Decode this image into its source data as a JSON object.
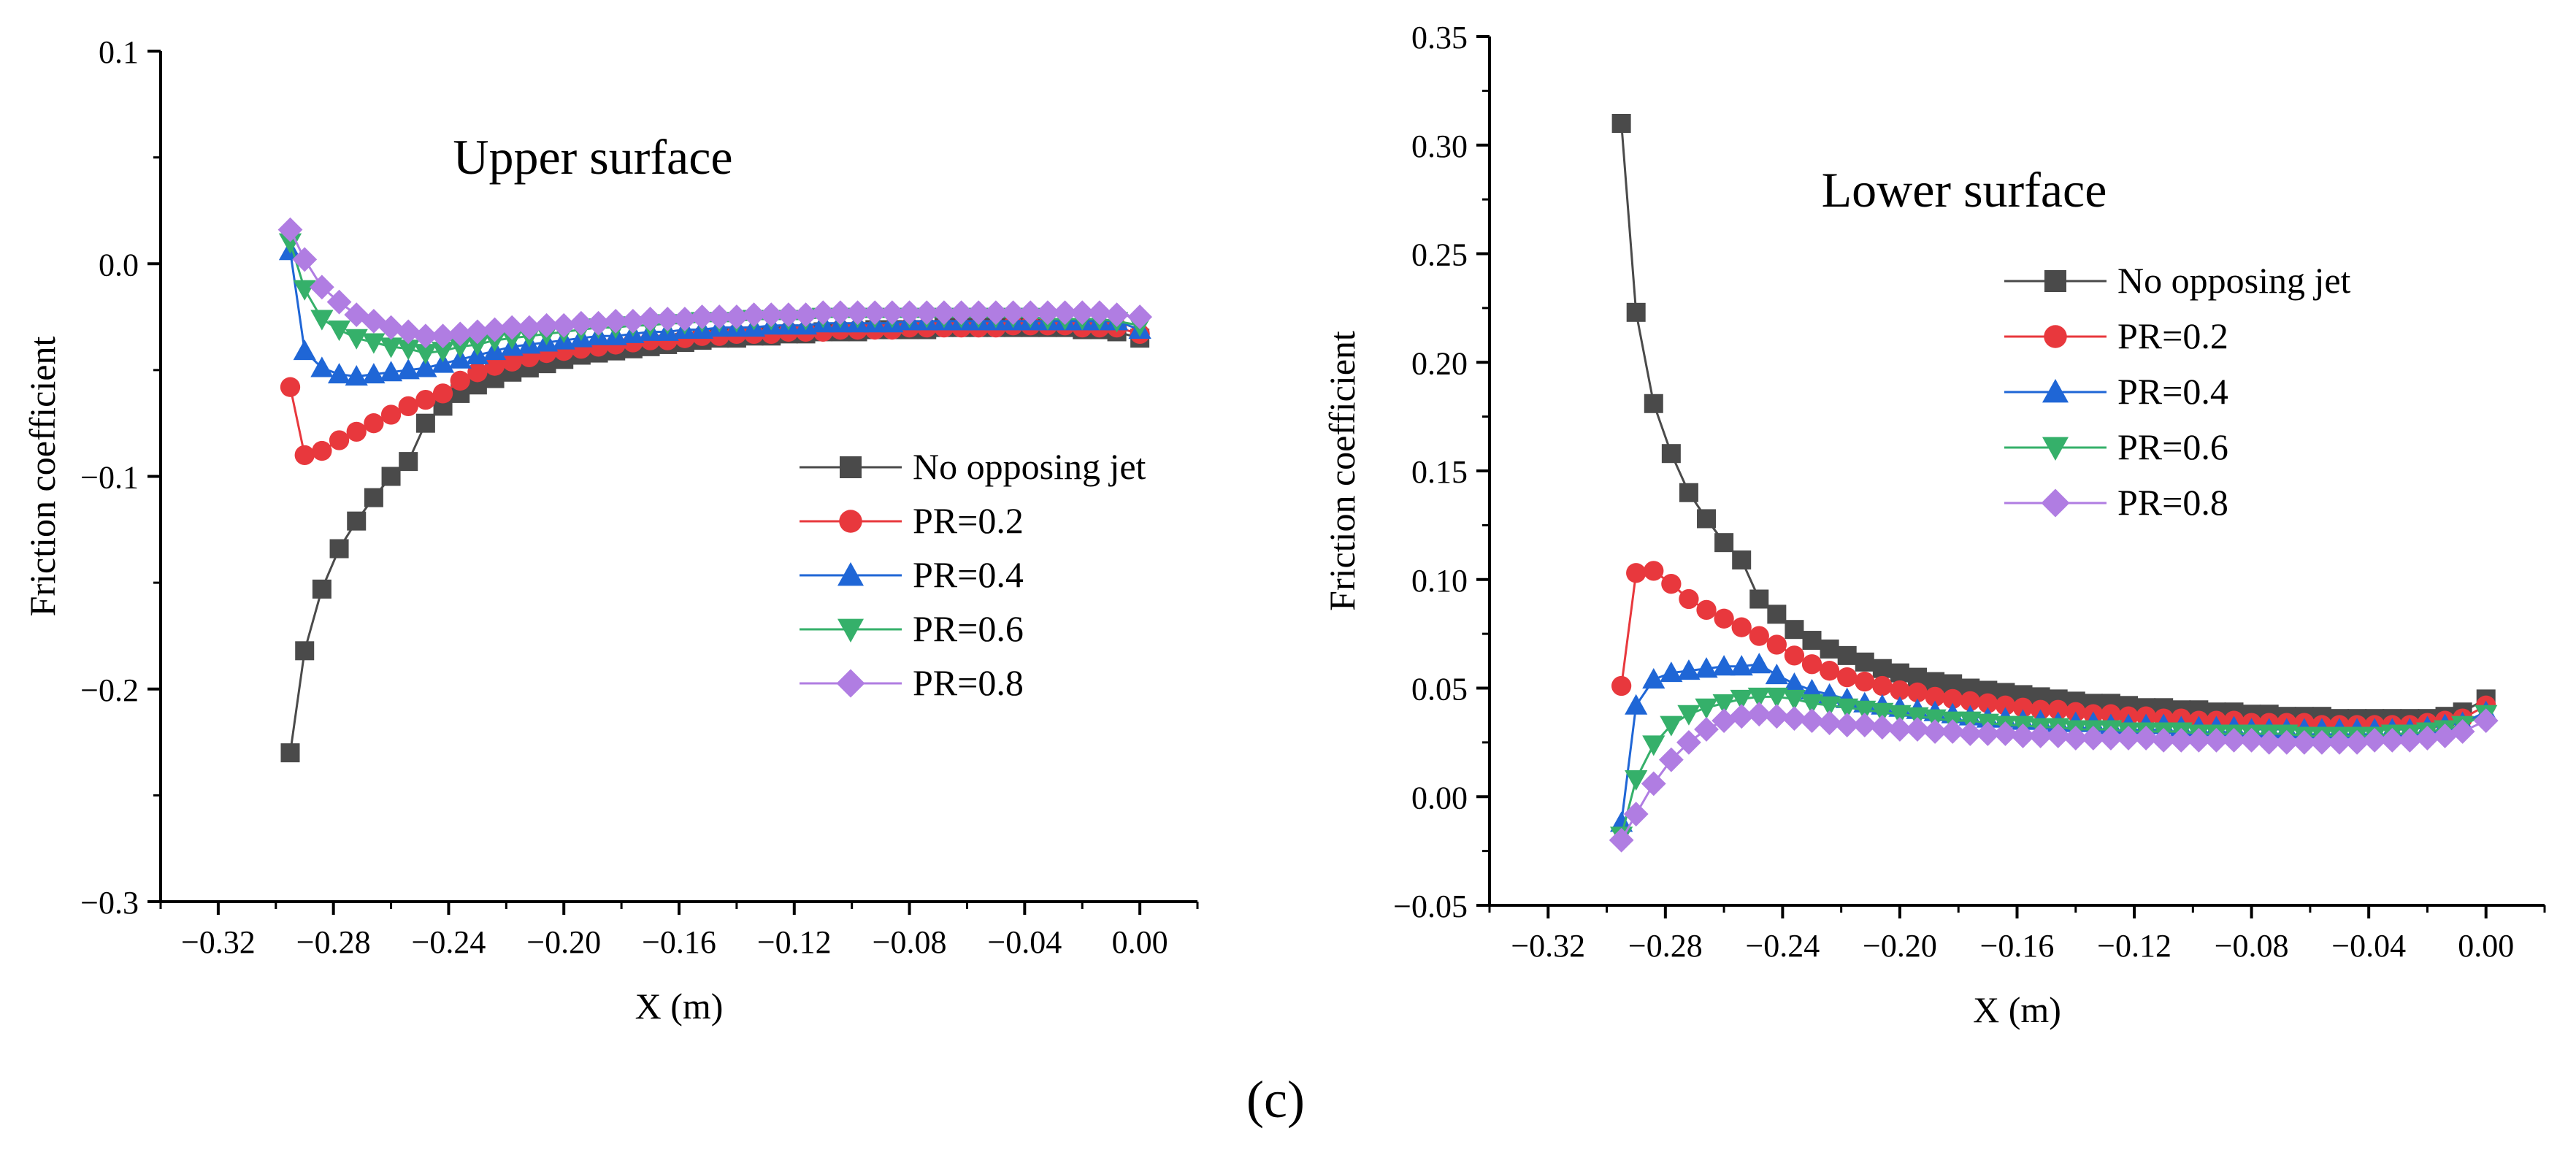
{
  "figure_label": "(c)",
  "colors": {
    "No opposing jet": "#4a4a4a",
    "PR=0.2": "#e8383d",
    "PR=0.4": "#1f66d6",
    "PR=0.6": "#35b06a",
    "PR=0.8": "#b07de2"
  },
  "chart_data": [
    {
      "type": "line",
      "title": "Upper surface",
      "xlabel": "X (m)",
      "ylabel": "Friction coefficient",
      "xlim": [
        -0.34,
        0.02
      ],
      "ylim": [
        -0.3,
        0.1
      ],
      "xticks": [
        -0.32,
        -0.28,
        -0.24,
        -0.2,
        -0.16,
        -0.12,
        -0.08,
        -0.04,
        0.0
      ],
      "xtick_labels": [
        "−0.32",
        "−0.28",
        "−0.24",
        "−0.20",
        "−0.16",
        "−0.12",
        "−0.08",
        "−0.04",
        "0.00"
      ],
      "yticks": [
        -0.3,
        -0.2,
        -0.1,
        0.0,
        0.1
      ],
      "ytick_labels": [
        "−0.3",
        "−0.2",
        "−0.1",
        "0.0",
        "0.1"
      ],
      "grid": false,
      "legend_position": "right",
      "x": [
        -0.295,
        -0.29,
        -0.284,
        -0.278,
        -0.272,
        -0.266,
        -0.26,
        -0.254,
        -0.248,
        -0.242,
        -0.236,
        -0.23,
        -0.224,
        -0.218,
        -0.212,
        -0.206,
        -0.2,
        -0.194,
        -0.188,
        -0.182,
        -0.176,
        -0.17,
        -0.164,
        -0.158,
        -0.152,
        -0.146,
        -0.14,
        -0.134,
        -0.128,
        -0.122,
        -0.116,
        -0.11,
        -0.104,
        -0.098,
        -0.092,
        -0.086,
        -0.08,
        -0.074,
        -0.068,
        -0.062,
        -0.056,
        -0.05,
        -0.044,
        -0.038,
        -0.032,
        -0.026,
        -0.02,
        -0.014,
        -0.008,
        0.0
      ],
      "series": [
        {
          "name": "No opposing jet",
          "marker": "square",
          "values": [
            -0.23,
            -0.182,
            -0.153,
            -0.134,
            -0.121,
            -0.11,
            -0.1,
            -0.093,
            -0.075,
            -0.067,
            -0.061,
            -0.057,
            -0.054,
            -0.051,
            -0.049,
            -0.047,
            -0.045,
            -0.043,
            -0.042,
            -0.041,
            -0.04,
            -0.039,
            -0.038,
            -0.037,
            -0.036,
            -0.035,
            -0.035,
            -0.034,
            -0.034,
            -0.033,
            -0.033,
            -0.032,
            -0.032,
            -0.032,
            -0.031,
            -0.031,
            -0.031,
            -0.031,
            -0.03,
            -0.03,
            -0.03,
            -0.03,
            -0.03,
            -0.03,
            -0.03,
            -0.03,
            -0.031,
            -0.031,
            -0.032,
            -0.035
          ]
        },
        {
          "name": "PR=0.2",
          "marker": "circle",
          "values": [
            -0.058,
            -0.09,
            -0.088,
            -0.083,
            -0.079,
            -0.075,
            -0.071,
            -0.067,
            -0.064,
            -0.061,
            -0.055,
            -0.051,
            -0.048,
            -0.046,
            -0.044,
            -0.042,
            -0.041,
            -0.04,
            -0.039,
            -0.038,
            -0.037,
            -0.036,
            -0.036,
            -0.035,
            -0.034,
            -0.034,
            -0.033,
            -0.033,
            -0.033,
            -0.032,
            -0.032,
            -0.032,
            -0.031,
            -0.031,
            -0.031,
            -0.031,
            -0.03,
            -0.03,
            -0.03,
            -0.03,
            -0.03,
            -0.03,
            -0.029,
            -0.029,
            -0.029,
            -0.029,
            -0.03,
            -0.03,
            -0.03,
            -0.033
          ]
        },
        {
          "name": "PR=0.4",
          "marker": "triangle-up",
          "values": [
            0.006,
            -0.041,
            -0.049,
            -0.052,
            -0.053,
            -0.052,
            -0.051,
            -0.05,
            -0.049,
            -0.047,
            -0.045,
            -0.043,
            -0.041,
            -0.039,
            -0.038,
            -0.037,
            -0.036,
            -0.035,
            -0.034,
            -0.034,
            -0.033,
            -0.032,
            -0.032,
            -0.031,
            -0.031,
            -0.03,
            -0.03,
            -0.03,
            -0.029,
            -0.029,
            -0.029,
            -0.028,
            -0.028,
            -0.028,
            -0.028,
            -0.028,
            -0.027,
            -0.027,
            -0.027,
            -0.027,
            -0.027,
            -0.027,
            -0.027,
            -0.027,
            -0.027,
            -0.027,
            -0.027,
            -0.027,
            -0.027,
            -0.031
          ]
        },
        {
          "name": "PR=0.6",
          "marker": "triangle-down",
          "values": [
            0.01,
            -0.012,
            -0.026,
            -0.031,
            -0.035,
            -0.037,
            -0.039,
            -0.04,
            -0.042,
            -0.041,
            -0.039,
            -0.038,
            -0.036,
            -0.035,
            -0.034,
            -0.033,
            -0.032,
            -0.031,
            -0.03,
            -0.03,
            -0.029,
            -0.029,
            -0.028,
            -0.028,
            -0.027,
            -0.027,
            -0.027,
            -0.026,
            -0.026,
            -0.026,
            -0.026,
            -0.025,
            -0.025,
            -0.025,
            -0.025,
            -0.025,
            -0.025,
            -0.025,
            -0.025,
            -0.025,
            -0.025,
            -0.025,
            -0.025,
            -0.025,
            -0.026,
            -0.026,
            -0.026,
            -0.026,
            -0.027,
            -0.029
          ]
        },
        {
          "name": "PR=0.8",
          "marker": "diamond",
          "values": [
            0.016,
            0.002,
            -0.011,
            -0.018,
            -0.024,
            -0.027,
            -0.03,
            -0.032,
            -0.034,
            -0.034,
            -0.033,
            -0.032,
            -0.031,
            -0.03,
            -0.03,
            -0.029,
            -0.029,
            -0.028,
            -0.028,
            -0.027,
            -0.027,
            -0.026,
            -0.026,
            -0.026,
            -0.025,
            -0.025,
            -0.025,
            -0.024,
            -0.024,
            -0.024,
            -0.024,
            -0.023,
            -0.023,
            -0.023,
            -0.023,
            -0.023,
            -0.023,
            -0.023,
            -0.023,
            -0.023,
            -0.023,
            -0.023,
            -0.023,
            -0.023,
            -0.023,
            -0.023,
            -0.023,
            -0.023,
            -0.024,
            -0.025
          ]
        }
      ]
    },
    {
      "type": "line",
      "title": "Lower surface",
      "xlabel": "X (m)",
      "ylabel": "Friction coefficient",
      "xlim": [
        -0.34,
        0.02
      ],
      "ylim": [
        -0.05,
        0.35
      ],
      "xticks": [
        -0.32,
        -0.28,
        -0.24,
        -0.2,
        -0.16,
        -0.12,
        -0.08,
        -0.04,
        0.0
      ],
      "xtick_labels": [
        "−0.32",
        "−0.28",
        "−0.24",
        "−0.20",
        "−0.16",
        "−0.12",
        "−0.08",
        "−0.04",
        "0.00"
      ],
      "yticks": [
        -0.05,
        0.0,
        0.05,
        0.1,
        0.15,
        0.2,
        0.25,
        0.3,
        0.35
      ],
      "ytick_labels": [
        "−0.05",
        "0.00",
        "0.05",
        "0.10",
        "0.15",
        "0.20",
        "0.25",
        "0.30",
        "0.35"
      ],
      "grid": false,
      "legend_position": "top-right",
      "x": [
        -0.295,
        -0.29,
        -0.284,
        -0.278,
        -0.272,
        -0.266,
        -0.26,
        -0.254,
        -0.248,
        -0.242,
        -0.236,
        -0.23,
        -0.224,
        -0.218,
        -0.212,
        -0.206,
        -0.2,
        -0.194,
        -0.188,
        -0.182,
        -0.176,
        -0.17,
        -0.164,
        -0.158,
        -0.152,
        -0.146,
        -0.14,
        -0.134,
        -0.128,
        -0.122,
        -0.116,
        -0.11,
        -0.104,
        -0.098,
        -0.092,
        -0.086,
        -0.08,
        -0.074,
        -0.068,
        -0.062,
        -0.056,
        -0.05,
        -0.044,
        -0.038,
        -0.032,
        -0.026,
        -0.02,
        -0.014,
        -0.008,
        0.0
      ],
      "series": [
        {
          "name": "No opposing jet",
          "marker": "square",
          "values": [
            0.31,
            0.223,
            0.181,
            0.158,
            0.14,
            0.128,
            0.117,
            0.109,
            0.091,
            0.084,
            0.077,
            0.072,
            0.068,
            0.065,
            0.062,
            0.059,
            0.057,
            0.055,
            0.053,
            0.052,
            0.05,
            0.049,
            0.048,
            0.047,
            0.046,
            0.045,
            0.044,
            0.043,
            0.043,
            0.042,
            0.041,
            0.041,
            0.04,
            0.04,
            0.039,
            0.039,
            0.038,
            0.038,
            0.037,
            0.037,
            0.037,
            0.036,
            0.036,
            0.036,
            0.036,
            0.036,
            0.036,
            0.037,
            0.039,
            0.045
          ]
        },
        {
          "name": "PR=0.2",
          "marker": "circle",
          "values": [
            0.051,
            0.103,
            0.104,
            0.098,
            0.091,
            0.086,
            0.082,
            0.078,
            0.074,
            0.07,
            0.065,
            0.061,
            0.058,
            0.055,
            0.053,
            0.051,
            0.049,
            0.048,
            0.046,
            0.045,
            0.044,
            0.043,
            0.042,
            0.041,
            0.04,
            0.04,
            0.039,
            0.038,
            0.038,
            0.037,
            0.037,
            0.036,
            0.036,
            0.035,
            0.035,
            0.035,
            0.034,
            0.034,
            0.034,
            0.034,
            0.033,
            0.033,
            0.033,
            0.033,
            0.033,
            0.033,
            0.034,
            0.035,
            0.036,
            0.042
          ]
        },
        {
          "name": "PR=0.4",
          "marker": "triangle-up",
          "values": [
            -0.012,
            0.042,
            0.054,
            0.057,
            0.058,
            0.059,
            0.06,
            0.06,
            0.061,
            0.056,
            0.052,
            0.049,
            0.047,
            0.045,
            0.043,
            0.042,
            0.041,
            0.04,
            0.039,
            0.038,
            0.037,
            0.036,
            0.036,
            0.035,
            0.035,
            0.034,
            0.034,
            0.034,
            0.033,
            0.033,
            0.033,
            0.033,
            0.032,
            0.032,
            0.032,
            0.032,
            0.031,
            0.031,
            0.031,
            0.031,
            0.031,
            0.031,
            0.031,
            0.031,
            0.031,
            0.031,
            0.032,
            0.033,
            0.034,
            0.039
          ]
        },
        {
          "name": "PR=0.6",
          "marker": "triangle-down",
          "values": [
            -0.018,
            0.008,
            0.024,
            0.033,
            0.038,
            0.041,
            0.043,
            0.045,
            0.046,
            0.046,
            0.045,
            0.043,
            0.042,
            0.041,
            0.04,
            0.039,
            0.038,
            0.037,
            0.036,
            0.035,
            0.035,
            0.034,
            0.033,
            0.033,
            0.032,
            0.032,
            0.031,
            0.031,
            0.031,
            0.03,
            0.03,
            0.03,
            0.03,
            0.029,
            0.029,
            0.029,
            0.029,
            0.029,
            0.029,
            0.028,
            0.028,
            0.028,
            0.028,
            0.028,
            0.029,
            0.029,
            0.03,
            0.031,
            0.033,
            0.038
          ]
        },
        {
          "name": "PR=0.8",
          "marker": "diamond",
          "values": [
            -0.02,
            -0.008,
            0.006,
            0.017,
            0.025,
            0.031,
            0.035,
            0.037,
            0.038,
            0.037,
            0.036,
            0.035,
            0.034,
            0.033,
            0.033,
            0.032,
            0.031,
            0.031,
            0.03,
            0.03,
            0.029,
            0.029,
            0.029,
            0.028,
            0.028,
            0.028,
            0.027,
            0.027,
            0.027,
            0.027,
            0.027,
            0.026,
            0.026,
            0.026,
            0.026,
            0.026,
            0.026,
            0.025,
            0.025,
            0.025,
            0.025,
            0.025,
            0.025,
            0.026,
            0.026,
            0.026,
            0.027,
            0.028,
            0.03,
            0.035
          ]
        }
      ]
    }
  ]
}
